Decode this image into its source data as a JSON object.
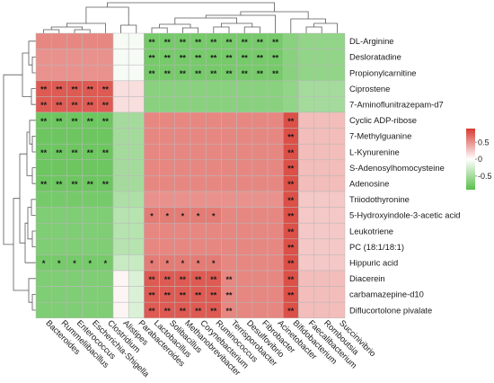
{
  "chart_data": {
    "type": "heatmap",
    "title": "",
    "xlabel": "",
    "ylabel": "",
    "rows": [
      "DL-Arginine",
      "Desloratadine",
      "Propionylcarnitine",
      "Ciprostene",
      "7-Aminoflunitrazepam-d7",
      "Cyclic ADP-ribose",
      "7-Methylguanine",
      "L-Kynurenine",
      "S-Adenosylhomocysteine",
      "Adenosine",
      "Triiodothyronine",
      "5-Hydroxyindole-3-acetic acid",
      "Leukotriene",
      "PC (18:1/18:1)",
      "Hippuric acid",
      "Diacerein",
      "carbamazepine-d10",
      "Diflucortolone pivalate"
    ],
    "columns": [
      "Bacteroides",
      "Rummeliibacillus",
      "Enterococcus",
      "Escherichia-Shigella",
      "Clostridium",
      "Alistipes",
      "Parabacteroides",
      "Lactobacillus",
      "Solibacillus",
      "Methanobrevibacter",
      "Corynebacterium",
      "Ruminococcus",
      "Terrisporobacter",
      "Desulfovibrio",
      "Fibrobacter",
      "Acinetobacter",
      "Bifidobacterium",
      "Faecalibacterium",
      "Romboutsia",
      "Succinivibrio"
    ],
    "values": [
      [
        0.55,
        0.55,
        0.55,
        0.55,
        0.55,
        -0.05,
        -0.05,
        -0.75,
        -0.75,
        -0.75,
        -0.75,
        -0.75,
        -0.75,
        -0.75,
        -0.75,
        -0.75,
        -0.65,
        -0.6,
        -0.6,
        -0.6
      ],
      [
        0.5,
        0.5,
        0.5,
        0.5,
        0.5,
        -0.05,
        -0.05,
        -0.75,
        -0.75,
        -0.75,
        -0.75,
        -0.75,
        -0.75,
        -0.75,
        -0.75,
        -0.75,
        -0.65,
        -0.6,
        -0.6,
        -0.6
      ],
      [
        0.5,
        0.5,
        0.5,
        0.5,
        0.5,
        -0.05,
        -0.05,
        -0.75,
        -0.75,
        -0.75,
        -0.75,
        -0.75,
        -0.75,
        -0.75,
        -0.75,
        -0.75,
        -0.65,
        -0.6,
        -0.6,
        -0.6
      ],
      [
        0.75,
        0.75,
        0.75,
        0.75,
        0.75,
        0.15,
        0.15,
        -0.65,
        -0.65,
        -0.65,
        -0.65,
        -0.65,
        -0.65,
        -0.65,
        -0.65,
        -0.65,
        -0.6,
        -0.5,
        -0.5,
        -0.5
      ],
      [
        0.75,
        0.75,
        0.75,
        0.75,
        0.75,
        0.15,
        0.15,
        -0.65,
        -0.65,
        -0.65,
        -0.65,
        -0.65,
        -0.65,
        -0.65,
        -0.65,
        -0.65,
        -0.6,
        -0.5,
        -0.5,
        -0.5
      ],
      [
        -0.8,
        -0.8,
        -0.8,
        -0.8,
        -0.8,
        -0.5,
        -0.5,
        0.55,
        0.55,
        0.55,
        0.55,
        0.55,
        0.55,
        0.55,
        0.55,
        0.55,
        0.8,
        0.3,
        0.3,
        0.3
      ],
      [
        -0.8,
        -0.8,
        -0.8,
        -0.8,
        -0.8,
        -0.5,
        -0.5,
        0.55,
        0.55,
        0.55,
        0.55,
        0.55,
        0.55,
        0.55,
        0.55,
        0.55,
        0.8,
        0.3,
        0.3,
        0.3
      ],
      [
        -0.8,
        -0.8,
        -0.8,
        -0.8,
        -0.8,
        -0.5,
        -0.5,
        0.55,
        0.55,
        0.55,
        0.55,
        0.55,
        0.55,
        0.55,
        0.55,
        0.55,
        0.8,
        0.3,
        0.3,
        0.3
      ],
      [
        -0.8,
        -0.8,
        -0.8,
        -0.8,
        -0.8,
        -0.5,
        -0.5,
        0.55,
        0.55,
        0.55,
        0.55,
        0.55,
        0.55,
        0.55,
        0.55,
        0.55,
        0.8,
        0.3,
        0.3,
        0.3
      ],
      [
        -0.8,
        -0.8,
        -0.8,
        -0.8,
        -0.8,
        -0.5,
        -0.5,
        0.55,
        0.55,
        0.55,
        0.55,
        0.55,
        0.55,
        0.55,
        0.55,
        0.55,
        0.8,
        0.3,
        0.3,
        0.3
      ],
      [
        -0.75,
        -0.75,
        -0.75,
        -0.75,
        -0.75,
        -0.45,
        -0.45,
        0.5,
        0.5,
        0.5,
        0.5,
        0.5,
        0.5,
        0.5,
        0.5,
        0.5,
        0.8,
        0.25,
        0.25,
        0.25
      ],
      [
        -0.7,
        -0.7,
        -0.7,
        -0.7,
        -0.7,
        -0.4,
        -0.4,
        0.6,
        0.6,
        0.6,
        0.6,
        0.6,
        0.55,
        0.55,
        0.55,
        0.55,
        0.8,
        0.25,
        0.25,
        0.25
      ],
      [
        -0.7,
        -0.7,
        -0.7,
        -0.7,
        -0.7,
        -0.4,
        -0.4,
        0.55,
        0.55,
        0.55,
        0.55,
        0.55,
        0.55,
        0.55,
        0.55,
        0.55,
        0.8,
        0.25,
        0.25,
        0.25
      ],
      [
        -0.7,
        -0.7,
        -0.7,
        -0.7,
        -0.7,
        -0.4,
        -0.4,
        0.55,
        0.55,
        0.55,
        0.55,
        0.55,
        0.55,
        0.55,
        0.55,
        0.55,
        0.8,
        0.25,
        0.25,
        0.25
      ],
      [
        -0.75,
        -0.75,
        -0.75,
        -0.75,
        -0.75,
        -0.3,
        -0.3,
        0.6,
        0.6,
        0.6,
        0.6,
        0.6,
        0.55,
        0.55,
        0.55,
        0.55,
        0.8,
        0.25,
        0.25,
        0.25
      ],
      [
        -0.7,
        -0.7,
        -0.7,
        -0.7,
        -0.7,
        0.05,
        -0.2,
        0.75,
        0.75,
        0.75,
        0.75,
        0.75,
        0.55,
        0.55,
        0.55,
        0.55,
        0.8,
        0.3,
        0.3,
        0.3
      ],
      [
        -0.7,
        -0.7,
        -0.7,
        -0.7,
        -0.7,
        0.05,
        -0.2,
        0.75,
        0.75,
        0.75,
        0.75,
        0.75,
        0.55,
        0.55,
        0.55,
        0.55,
        0.8,
        0.3,
        0.3,
        0.3
      ],
      [
        -0.7,
        -0.7,
        -0.7,
        -0.7,
        -0.7,
        0.05,
        -0.2,
        0.75,
        0.75,
        0.75,
        0.75,
        0.75,
        0.55,
        0.55,
        0.55,
        0.55,
        0.8,
        0.3,
        0.3,
        0.3
      ]
    ],
    "significance": [
      [
        "",
        "",
        "",
        "",
        "",
        "",
        "",
        "**",
        "**",
        "**",
        "**",
        "**",
        "**",
        "**",
        "**",
        "**",
        "",
        "",
        "",
        ""
      ],
      [
        "",
        "",
        "",
        "",
        "",
        "",
        "",
        "**",
        "**",
        "**",
        "**",
        "**",
        "**",
        "**",
        "**",
        "**",
        "",
        "",
        "",
        ""
      ],
      [
        "",
        "",
        "",
        "",
        "",
        "",
        "",
        "**",
        "**",
        "**",
        "**",
        "**",
        "**",
        "**",
        "**",
        "**",
        "",
        "",
        "",
        ""
      ],
      [
        "**",
        "**",
        "**",
        "**",
        "**",
        "",
        "",
        "",
        "",
        "",
        "",
        "",
        "",
        "",
        "",
        "",
        "",
        "",
        "",
        ""
      ],
      [
        "**",
        "**",
        "**",
        "**",
        "**",
        "",
        "",
        "",
        "",
        "",
        "",
        "",
        "",
        "",
        "",
        "",
        "",
        "",
        "",
        ""
      ],
      [
        "**",
        "**",
        "**",
        "**",
        "**",
        "",
        "",
        "",
        "",
        "",
        "",
        "",
        "",
        "",
        "",
        "",
        "**",
        "",
        "",
        ""
      ],
      [
        "",
        "",
        "",
        "",
        "",
        "",
        "",
        "",
        "",
        "",
        "",
        "",
        "",
        "",
        "",
        "",
        "**",
        "",
        "",
        ""
      ],
      [
        "**",
        "**",
        "**",
        "**",
        "**",
        "",
        "",
        "",
        "",
        "",
        "",
        "",
        "",
        "",
        "",
        "",
        "**",
        "",
        "",
        ""
      ],
      [
        "",
        "",
        "",
        "",
        "",
        "",
        "",
        "",
        "",
        "",
        "",
        "",
        "",
        "",
        "",
        "",
        "**",
        "",
        "",
        ""
      ],
      [
        "**",
        "**",
        "**",
        "**",
        "**",
        "",
        "",
        "",
        "",
        "",
        "",
        "",
        "",
        "",
        "",
        "",
        "**",
        "",
        "",
        ""
      ],
      [
        "",
        "",
        "",
        "",
        "",
        "",
        "",
        "",
        "",
        "",
        "",
        "",
        "",
        "",
        "",
        "",
        "**",
        "",
        "",
        ""
      ],
      [
        "",
        "",
        "",
        "",
        "",
        "",
        "",
        "*",
        "*",
        "*",
        "*",
        "*",
        "",
        "",
        "",
        "",
        "**",
        "",
        "",
        ""
      ],
      [
        "",
        "",
        "",
        "",
        "",
        "",
        "",
        "",
        "",
        "",
        "",
        "",
        "",
        "",
        "",
        "",
        "**",
        "",
        "",
        ""
      ],
      [
        "",
        "",
        "",
        "",
        "",
        "",
        "",
        "",
        "",
        "",
        "",
        "",
        "",
        "",
        "",
        "",
        "**",
        "",
        "",
        ""
      ],
      [
        "*",
        "*",
        "*",
        "*",
        "*",
        "",
        "",
        "*",
        "*",
        "*",
        "*",
        "*",
        "",
        "",
        "",
        "",
        "**",
        "",
        "",
        ""
      ],
      [
        "",
        "",
        "",
        "",
        "",
        "",
        "",
        "**",
        "**",
        "**",
        "**",
        "**",
        "**",
        "",
        "",
        "",
        "**",
        "",
        "",
        ""
      ],
      [
        "",
        "",
        "",
        "",
        "",
        "",
        "",
        "**",
        "**",
        "**",
        "**",
        "**",
        "**",
        "",
        "",
        "",
        "**",
        "",
        "",
        ""
      ],
      [
        "",
        "",
        "",
        "",
        "",
        "",
        "",
        "**",
        "**",
        "**",
        "**",
        "**",
        "**",
        "",
        "",
        "",
        "**",
        "",
        "",
        ""
      ]
    ],
    "legend": {
      "ticks": [
        "0.5",
        "0",
        "-0.5"
      ],
      "tick_values": [
        0.5,
        0,
        -0.5
      ],
      "range": [
        -0.9,
        0.9
      ],
      "colors": {
        "low": "#5bbf4c",
        "mid": "#ffffff",
        "high": "#d73a31"
      },
      "placement": "right"
    },
    "row_dendrogram": "left",
    "column_dendrogram": "top"
  }
}
